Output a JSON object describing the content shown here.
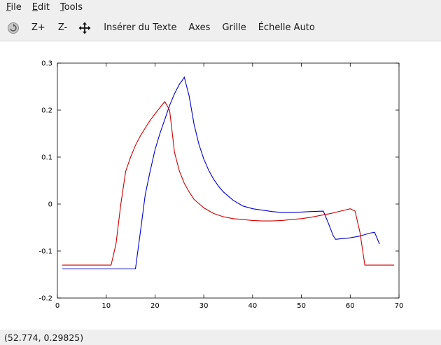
{
  "menubar": {
    "items": [
      {
        "mnemonic": "F",
        "rest": "ile"
      },
      {
        "mnemonic": "E",
        "rest": "dit"
      },
      {
        "mnemonic": "T",
        "rest": "ools"
      }
    ]
  },
  "toolbar": {
    "rotate_icon": "rotate-icon",
    "zoom_in_label": "Z+",
    "zoom_out_label": "Z-",
    "pan_icon": "pan-arrows-icon",
    "insert_text_label": "Insérer du Texte",
    "axes_label": "Axes",
    "grid_label": "Grille",
    "autoscale_label": "Échelle Auto"
  },
  "chart_data": {
    "type": "line",
    "title": "",
    "xlabel": "",
    "ylabel": "",
    "xlim": [
      0,
      70
    ],
    "ylim": [
      -0.2,
      0.3
    ],
    "xticks": [
      "0",
      "10",
      "20",
      "30",
      "40",
      "50",
      "60",
      "70"
    ],
    "yticks": [
      "-0.2",
      "-0.1",
      "0",
      "0.1",
      "0.2",
      "0.3"
    ],
    "grid": false,
    "series": [
      {
        "color": "#0000cc",
        "x": [
          1,
          16,
          17,
          18,
          19,
          20,
          21,
          22,
          23,
          24,
          25,
          25.5,
          26,
          26.5,
          27,
          28,
          29,
          30,
          31,
          32,
          33,
          34,
          36,
          38,
          40,
          42,
          44,
          46,
          48,
          50,
          52,
          54.5,
          55.5,
          56.5,
          57,
          58,
          60,
          62,
          64,
          65,
          66
        ],
        "y": [
          -0.138,
          -0.138,
          -0.06,
          0.02,
          0.07,
          0.115,
          0.15,
          0.18,
          0.21,
          0.235,
          0.255,
          0.262,
          0.27,
          0.25,
          0.23,
          0.17,
          0.127,
          0.096,
          0.072,
          0.053,
          0.038,
          0.026,
          0.008,
          -0.004,
          -0.01,
          -0.013,
          -0.016,
          -0.018,
          -0.018,
          -0.017,
          -0.016,
          -0.015,
          -0.04,
          -0.067,
          -0.075,
          -0.074,
          -0.072,
          -0.068,
          -0.062,
          -0.06,
          -0.085
        ]
      },
      {
        "color": "#cc0000",
        "x": [
          1,
          11,
          12,
          13,
          14,
          15,
          16,
          17,
          18,
          19,
          20,
          21,
          22,
          23,
          24,
          25,
          26,
          27,
          28,
          30,
          32,
          34,
          36,
          38,
          40,
          42,
          44,
          46,
          48,
          50,
          52,
          54,
          56,
          58,
          60,
          61,
          62,
          63,
          69
        ],
        "y": [
          -0.13,
          -0.13,
          -0.085,
          0.0,
          0.07,
          0.1,
          0.125,
          0.145,
          0.162,
          0.178,
          0.192,
          0.205,
          0.218,
          0.2,
          0.11,
          0.07,
          0.044,
          0.026,
          0.01,
          -0.008,
          -0.02,
          -0.027,
          -0.031,
          -0.033,
          -0.035,
          -0.036,
          -0.036,
          -0.035,
          -0.033,
          -0.031,
          -0.028,
          -0.024,
          -0.02,
          -0.015,
          -0.01,
          -0.015,
          -0.06,
          -0.13,
          -0.13
        ]
      }
    ]
  },
  "status": {
    "coords": "(52.774, 0.29825)"
  }
}
